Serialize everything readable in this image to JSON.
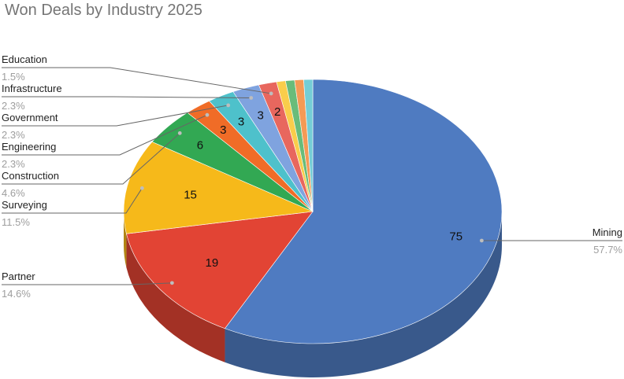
{
  "chart_data": {
    "type": "pie",
    "title": "Won Deals by Industry 2025",
    "three_d": true,
    "slices": [
      {
        "label": "Mining",
        "value": 75,
        "percent": "57.7%",
        "color": "#4F7BC1",
        "show_value": true,
        "show_label": true
      },
      {
        "label": "Partner",
        "value": 19,
        "percent": "14.6%",
        "color": "#E24434",
        "show_value": true,
        "show_label": true
      },
      {
        "label": "Surveying",
        "value": 15,
        "percent": "11.5%",
        "color": "#F6B91A",
        "show_value": true,
        "show_label": true
      },
      {
        "label": "Construction",
        "value": 6,
        "percent": "4.6%",
        "color": "#32A853",
        "show_value": true,
        "show_label": true
      },
      {
        "label": "Engineering",
        "value": 3,
        "percent": "2.3%",
        "color": "#F06C27",
        "show_value": true,
        "show_label": true
      },
      {
        "label": "Government",
        "value": 3,
        "percent": "2.3%",
        "color": "#4EC1CB",
        "show_value": true,
        "show_label": true
      },
      {
        "label": "Infrastructure",
        "value": 3,
        "percent": "2.3%",
        "color": "#7FA3DF",
        "show_value": true,
        "show_label": true
      },
      {
        "label": "Education",
        "value": 2,
        "percent": "1.5%",
        "color": "#E8675E",
        "show_value": true,
        "show_label": true
      },
      {
        "label": "",
        "value": 1,
        "percent": "",
        "color": "#F9CD4B",
        "show_value": false,
        "show_label": false
      },
      {
        "label": "",
        "value": 1,
        "percent": "",
        "color": "#69BC7A",
        "show_value": false,
        "show_label": false
      },
      {
        "label": "",
        "value": 1,
        "percent": "",
        "color": "#F59A55",
        "show_value": false,
        "show_label": false
      },
      {
        "label": "",
        "value": 1,
        "percent": "",
        "color": "#74CDD6",
        "show_value": false,
        "show_label": false
      }
    ]
  }
}
